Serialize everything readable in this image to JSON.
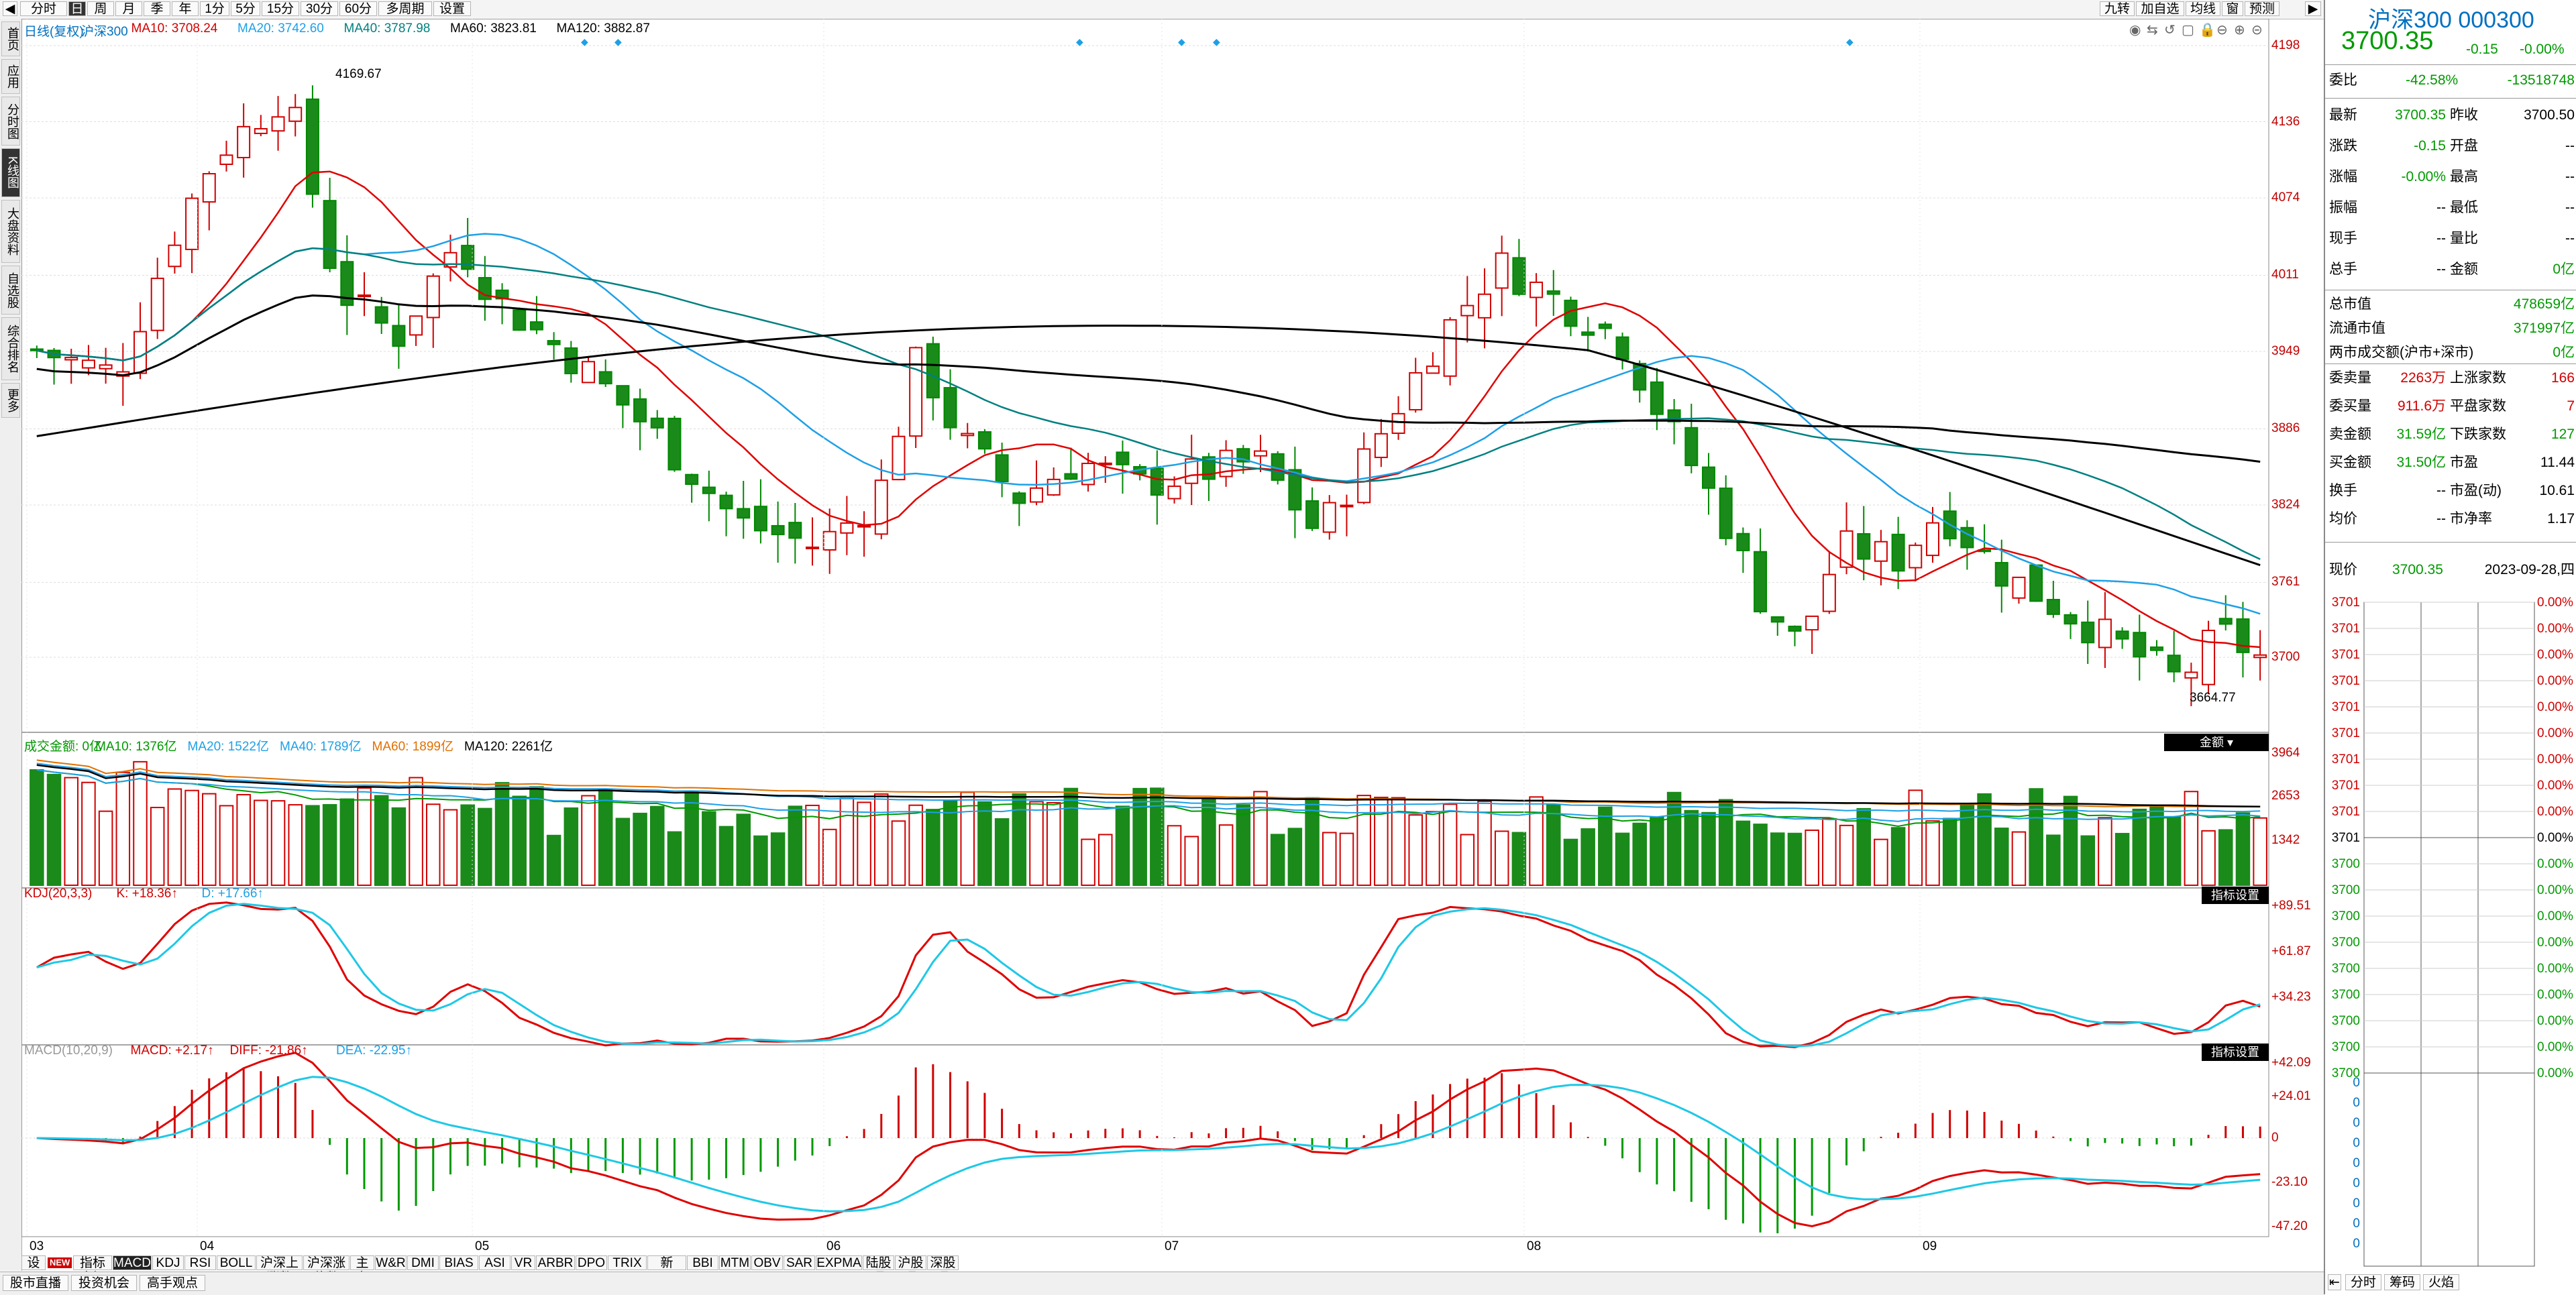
{
  "toolbar": {
    "left_buttons": [
      "分时",
      "日",
      "周",
      "月",
      "季",
      "年",
      "1分",
      "5分",
      "15分",
      "30分",
      "60分",
      "多周期",
      "设置"
    ],
    "active": "日",
    "right_buttons": [
      "九转",
      "加自选",
      "均线",
      "窗",
      "预测"
    ]
  },
  "left_tabs": [
    {
      "label": "首页",
      "active": false
    },
    {
      "label": "应用",
      "active": false
    },
    {
      "label": "分时图",
      "active": false
    },
    {
      "label": "K线图",
      "active": true
    },
    {
      "label": "大盘资料",
      "active": false
    },
    {
      "label": "自选股",
      "active": false
    },
    {
      "label": "综合排名",
      "active": false
    },
    {
      "label": "更多",
      "active": false
    }
  ],
  "main_legend": [
    {
      "text": "日线(复权)",
      "color": "#0070c0"
    },
    {
      "text": "沪深300",
      "color": "#0070c0"
    },
    {
      "text": "MA10: 3708.24",
      "color": "#d00000"
    },
    {
      "text": "MA20: 3742.60",
      "color": "#1ea0e6"
    },
    {
      "text": "MA40: 3787.98",
      "color": "#008080"
    },
    {
      "text": "MA60: 3823.81",
      "color": "#000000"
    },
    {
      "text": "MA120: 3882.87",
      "color": "#000000"
    }
  ],
  "price_axis": [
    "4198",
    "4136",
    "4074",
    "4011",
    "3949",
    "3886",
    "3824",
    "3761",
    "3700"
  ],
  "annotations": {
    "high": "4169.67",
    "low": "3664.77"
  },
  "volume_legend": [
    {
      "text": "成交金额: 0亿",
      "color": "#009900"
    },
    {
      "text": "MA10: 1376亿",
      "color": "#009900"
    },
    {
      "text": "MA20: 1522亿",
      "color": "#1ea0e6"
    },
    {
      "text": "MA40: 1789亿",
      "color": "#1ea0e6"
    },
    {
      "text": "MA60: 1899亿",
      "color": "#e07000"
    },
    {
      "text": "MA120: 2261亿",
      "color": "#000000"
    }
  ],
  "volume_tag": "金额",
  "volume_axis": [
    "3964",
    "2653",
    "1342"
  ],
  "kdj_legend": [
    {
      "text": "KDJ(20,3,3)",
      "color": "#d00000"
    },
    {
      "text": "K: +18.36↑",
      "color": "#d00000"
    },
    {
      "text": "D: +17.66↑",
      "color": "#1ea0e6"
    }
  ],
  "kdj_axis": [
    "+89.51",
    "+61.87",
    "+34.23"
  ],
  "kdj_tag": "指标设置",
  "macd_legend": [
    {
      "text": "MACD(10,20,9)",
      "color": "#999999"
    },
    {
      "text": "MACD: +2.17↑",
      "color": "#d00000"
    },
    {
      "text": "DIFF: -21.86↑",
      "color": "#d00000"
    },
    {
      "text": "DEA: -22.95↑",
      "color": "#1ea0e6"
    }
  ],
  "macd_axis": [
    "+42.09",
    "+24.01",
    "0",
    "-23.10",
    "-47.20"
  ],
  "macd_tag": "指标设置",
  "month_labels": [
    "03",
    "04",
    "05",
    "06",
    "07",
    "08",
    "09"
  ],
  "bottom_tabs": [
    "设置",
    "NEW",
    "指标广场",
    "MACD",
    "KDJ",
    "RSI",
    "BOLL",
    "沪深上涨数",
    "沪深涨停数",
    "主力",
    "W&R",
    "DMI",
    "BIAS",
    "ASI",
    "VR",
    "ARBR",
    "DPO",
    "TRIX",
    "新DMA",
    "BBI",
    "MTM",
    "OBV",
    "SAR",
    "EXPMA",
    "陆股通",
    "沪股通",
    "深股通"
  ],
  "bottom_active": "MACD",
  "status_buttons": [
    "股市直播",
    "投资机会",
    "高手观点"
  ],
  "right_panel": {
    "title": "沪深300 000300",
    "price": "3700.35",
    "change": "-0.15",
    "change_pct": "-0.00%",
    "weibi_label": "委比",
    "weibi_pct": "-42.58%",
    "weibi_val": "-13518748",
    "rows1": [
      {
        "l": "最新",
        "v": "3700.35",
        "vc": "green",
        "l2": "昨收",
        "v2": "3700.50",
        "v2c": "black"
      },
      {
        "l": "涨跌",
        "v": "-0.15",
        "vc": "green",
        "l2": "开盘",
        "v2": "--",
        "v2c": "black"
      },
      {
        "l": "涨幅",
        "v": "-0.00%",
        "vc": "green",
        "l2": "最高",
        "v2": "--",
        "v2c": "black"
      },
      {
        "l": "振幅",
        "v": "--",
        "vc": "black",
        "l2": "最低",
        "v2": "--",
        "v2c": "black"
      },
      {
        "l": "现手",
        "v": "--",
        "vc": "black",
        "l2": "量比",
        "v2": "--",
        "v2c": "black"
      },
      {
        "l": "总手",
        "v": "--",
        "vc": "black",
        "l2": "金额",
        "v2": "0亿",
        "v2c": "green"
      }
    ],
    "rows2": [
      {
        "l": "总市值",
        "v": "478659亿",
        "vc": "green"
      },
      {
        "l": "流通市值",
        "v": "371997亿",
        "vc": "green"
      },
      {
        "l": "两市成交额(沪市+深市)",
        "v": "0亿",
        "vc": "green"
      }
    ],
    "rows3": [
      {
        "l": "委卖量",
        "v": "2263万",
        "vc": "red",
        "l2": "上涨家数",
        "v2": "166",
        "v2c": "red"
      },
      {
        "l": "委买量",
        "v": "911.6万",
        "vc": "red",
        "l2": "平盘家数",
        "v2": "7",
        "v2c": "red"
      },
      {
        "l": "卖金额",
        "v": "31.59亿",
        "vc": "green",
        "l2": "下跌家数",
        "v2": "127",
        "v2c": "green"
      },
      {
        "l": "买金额",
        "v": "31.50亿",
        "vc": "green",
        "l2": "市盈",
        "v2": "11.44",
        "v2c": "black"
      },
      {
        "l": "换手",
        "v": "--",
        "vc": "black",
        "l2": "市盈(动)",
        "v2": "10.61",
        "v2c": "black"
      },
      {
        "l": "均价",
        "v": "--",
        "vc": "black",
        "l2": "市净率",
        "v2": "1.17",
        "v2c": "black"
      }
    ],
    "now_label": "现价",
    "now_price": "3700.35",
    "date": "2023-09-28,四",
    "mini_left_top": [
      "3701",
      "3701",
      "3701",
      "3701",
      "3701",
      "3701",
      "3701",
      "3701",
      "3701"
    ],
    "mini_left_mid": "3701",
    "mini_left_bot": [
      "3700",
      "3700",
      "3700",
      "3700",
      "3700",
      "3700",
      "3700",
      "3700",
      "3700"
    ],
    "mini_right": "0.00%",
    "mini_vol": [
      "0",
      "0",
      "0",
      "0",
      "0",
      "0",
      "0",
      "0",
      "0"
    ],
    "bottom_buttons": [
      "分时",
      "筹码",
      "火焰"
    ]
  }
}
